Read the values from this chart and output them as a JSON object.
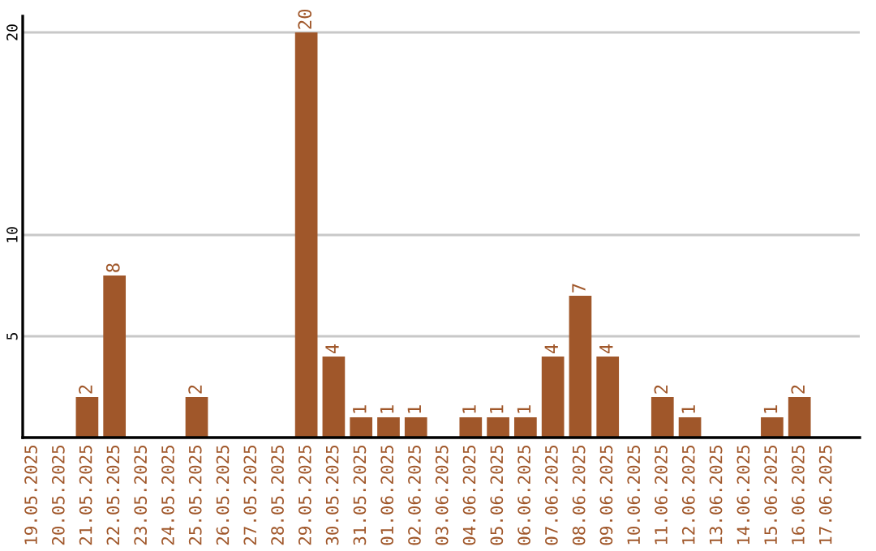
{
  "chart_data": {
    "type": "bar",
    "categories": [
      "19.05.2025",
      "20.05.2025",
      "21.05.2025",
      "22.05.2025",
      "23.05.2025",
      "24.05.2025",
      "25.05.2025",
      "26.05.2025",
      "27.05.2025",
      "28.05.2025",
      "29.05.2025",
      "30.05.2025",
      "31.05.2025",
      "01.06.2025",
      "02.06.2025",
      "03.06.2025",
      "04.06.2025",
      "05.06.2025",
      "06.06.2025",
      "07.06.2025",
      "08.06.2025",
      "09.06.2025",
      "10.06.2025",
      "11.06.2025",
      "12.06.2025",
      "13.06.2025",
      "14.06.2025",
      "15.06.2025",
      "16.06.2025",
      "17.06.2025"
    ],
    "values": [
      0,
      0,
      2,
      8,
      0,
      0,
      2,
      0,
      0,
      0,
      20,
      4,
      1,
      1,
      1,
      0,
      1,
      1,
      1,
      4,
      7,
      4,
      0,
      2,
      1,
      0,
      0,
      1,
      2,
      0
    ],
    "value_labels": [
      null,
      null,
      "2",
      "8",
      null,
      null,
      "2",
      null,
      null,
      null,
      "20",
      "4",
      "1",
      "1",
      "1",
      null,
      "1",
      "1",
      "1",
      "4",
      "7",
      "4",
      null,
      "2",
      "1",
      null,
      null,
      "1",
      "2",
      null
    ],
    "color": "#a0572a",
    "ylim": [
      0,
      20.8
    ],
    "yticks": [
      5,
      10,
      20
    ],
    "grid": "y",
    "legend": false
  }
}
